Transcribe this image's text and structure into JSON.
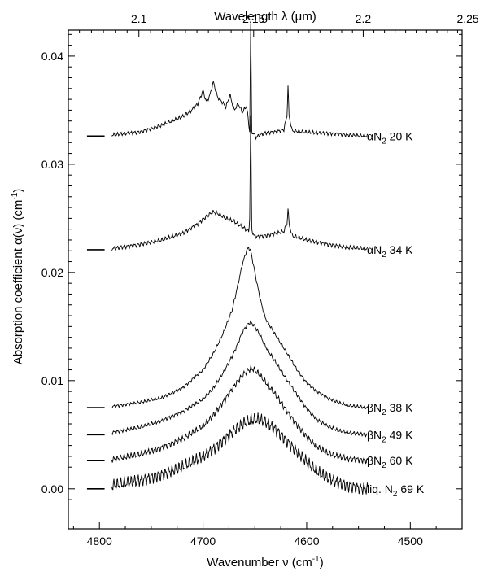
{
  "chart_data": {
    "type": "line",
    "xlabel": "Wavenumber ν (cm",
    "xlabel_sup": "-1",
    "xlabel_end": ")",
    "ylabel": "Absorption coefficient α(ν) (cm",
    "ylabel_sup": "-1",
    "ylabel_end": ")",
    "top_xlabel": "Wavelength λ (μm)",
    "xlim": [
      4830,
      4450
    ],
    "ylim": [
      -0.0037,
      0.0424
    ],
    "x_ticks": [
      4800,
      4700,
      4600,
      4500
    ],
    "x_tick_labels": [
      "4800",
      "4700",
      "4600",
      "4500"
    ],
    "y_ticks": [
      0.0,
      0.01,
      0.02,
      0.03,
      0.04
    ],
    "y_tick_labels": [
      "0.00",
      "0.01",
      "0.02",
      "0.03",
      "0.04"
    ],
    "top_ticks_um": [
      2.1,
      2.15,
      2.2,
      2.25
    ],
    "top_tick_labels": [
      "2.1",
      "2.15",
      "2.2",
      "2.25"
    ],
    "grid": false,
    "series": [
      {
        "name": "αN₂ 20 K",
        "label_main": "αN",
        "label_sub": "2",
        "label_end": " 20 K",
        "baseline": 0.0326,
        "label_y": 0.0326,
        "x": [
          4788,
          4760,
          4740,
          4720,
          4712,
          4705,
          4700,
          4697,
          4694,
          4690,
          4686,
          4682,
          4678,
          4674,
          4670,
          4666,
          4662,
          4658,
          4655,
          4654,
          4653,
          4651,
          4649,
          4645,
          4640,
          4630,
          4622,
          4619,
          4618,
          4617,
          4614,
          4605,
          4590,
          4570,
          4560,
          4541
        ],
        "y": [
          0.0327,
          0.033,
          0.0336,
          0.0344,
          0.0349,
          0.0356,
          0.0368,
          0.0358,
          0.0362,
          0.0376,
          0.0362,
          0.0358,
          0.0353,
          0.0364,
          0.035,
          0.0356,
          0.0348,
          0.0354,
          0.033,
          0.043,
          0.033,
          0.0328,
          0.0325,
          0.0327,
          0.0329,
          0.033,
          0.0332,
          0.0345,
          0.0372,
          0.0345,
          0.0331,
          0.033,
          0.0329,
          0.0328,
          0.0327,
          0.0326
        ]
      },
      {
        "name": "αN₂ 34 K",
        "label_main": "αN",
        "label_sub": "2",
        "label_end": " 34 K",
        "baseline": 0.0221,
        "label_y": 0.0221,
        "x": [
          4788,
          4760,
          4740,
          4720,
          4705,
          4695,
          4690,
          4685,
          4678,
          4670,
          4662,
          4656,
          4655,
          4654,
          4653,
          4651,
          4648,
          4640,
          4630,
          4622,
          4619,
          4618,
          4617,
          4614,
          4600,
          4580,
          4560,
          4541
        ],
        "y": [
          0.0222,
          0.0226,
          0.023,
          0.0236,
          0.0245,
          0.0253,
          0.0256,
          0.0254,
          0.025,
          0.0247,
          0.0242,
          0.0238,
          0.025,
          0.0345,
          0.024,
          0.0234,
          0.0233,
          0.0234,
          0.0236,
          0.0238,
          0.0245,
          0.0259,
          0.0245,
          0.0234,
          0.023,
          0.0226,
          0.0223,
          0.0222
        ]
      },
      {
        "name": "βN₂ 38 K",
        "label_main": "βN",
        "label_sub": "2",
        "label_end": " 38 K",
        "baseline": 0.0075,
        "label_y": 0.0075,
        "x": [
          4788,
          4760,
          4740,
          4720,
          4700,
          4690,
          4680,
          4672,
          4666,
          4662,
          4658,
          4656,
          4654,
          4652,
          4648,
          4644,
          4640,
          4630,
          4620,
          4610,
          4600,
          4590,
          4580,
          4570,
          4560,
          4550,
          4541
        ],
        "y": [
          0.0076,
          0.008,
          0.0084,
          0.0093,
          0.011,
          0.0125,
          0.0145,
          0.0165,
          0.019,
          0.0208,
          0.022,
          0.0223,
          0.022,
          0.021,
          0.019,
          0.0172,
          0.0158,
          0.0142,
          0.0127,
          0.0111,
          0.0098,
          0.009,
          0.0084,
          0.008,
          0.0077,
          0.0076,
          0.0075
        ]
      },
      {
        "name": "βN₂ 49 K",
        "label_main": "βN",
        "label_sub": "2",
        "label_end": " 49 K",
        "baseline": 0.005,
        "label_y": 0.005,
        "x": [
          4788,
          4760,
          4740,
          4720,
          4700,
          4690,
          4680,
          4670,
          4662,
          4657,
          4654,
          4650,
          4645,
          4640,
          4630,
          4620,
          4610,
          4600,
          4590,
          4580,
          4570,
          4560,
          4550,
          4541
        ],
        "y": [
          0.0052,
          0.0057,
          0.0063,
          0.0071,
          0.0083,
          0.0093,
          0.0108,
          0.0126,
          0.0145,
          0.0152,
          0.0154,
          0.015,
          0.0142,
          0.0132,
          0.0117,
          0.0102,
          0.0088,
          0.0074,
          0.0064,
          0.0058,
          0.0054,
          0.0052,
          0.0051,
          0.005
        ]
      },
      {
        "name": "βN₂ 60 K",
        "label_main": "βN",
        "label_sub": "2",
        "label_end": " 60 K",
        "baseline": 0.0026,
        "label_y": 0.0026,
        "x": [
          4788,
          4760,
          4740,
          4720,
          4700,
          4690,
          4680,
          4670,
          4662,
          4656,
          4652,
          4648,
          4640,
          4630,
          4620,
          4610,
          4600,
          4590,
          4580,
          4570,
          4560,
          4550,
          4541
        ],
        "y": [
          0.0027,
          0.0032,
          0.0038,
          0.0046,
          0.0058,
          0.0068,
          0.0081,
          0.0095,
          0.0105,
          0.011,
          0.0111,
          0.0108,
          0.0099,
          0.0087,
          0.0073,
          0.006,
          0.0048,
          0.0039,
          0.0033,
          0.003,
          0.0028,
          0.0027,
          0.0026
        ]
      },
      {
        "name": "liq. N₂ 69 K",
        "label_main": "liq. N",
        "label_sub": "2",
        "label_end": " 69 K",
        "baseline": 0.0,
        "label_y": 0.0,
        "x": [
          4788,
          4760,
          4740,
          4720,
          4700,
          4690,
          4680,
          4670,
          4660,
          4650,
          4645,
          4640,
          4630,
          4620,
          4610,
          4600,
          4590,
          4580,
          4570,
          4560,
          4550,
          4541
        ],
        "y": [
          0.0003,
          0.0008,
          0.0013,
          0.002,
          0.003,
          0.0037,
          0.0045,
          0.0054,
          0.0061,
          0.0064,
          0.0064,
          0.0062,
          0.0055,
          0.0045,
          0.0035,
          0.0025,
          0.0016,
          0.001,
          0.0006,
          0.0003,
          0.0001,
          0.0
        ]
      }
    ]
  }
}
